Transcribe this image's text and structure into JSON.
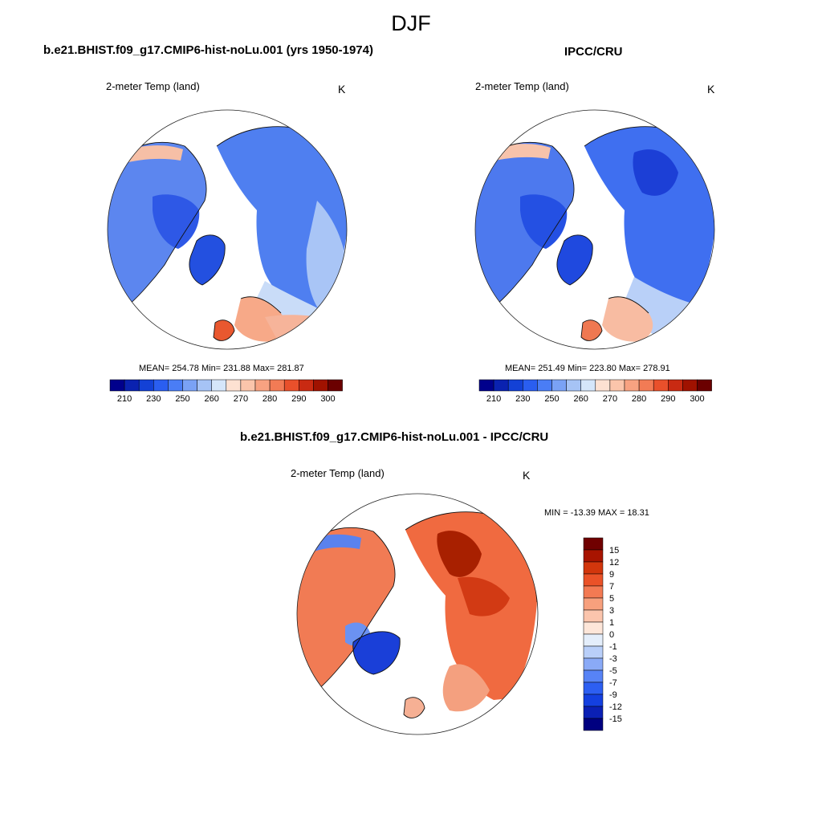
{
  "season": "DJF",
  "colors": {
    "scale_21": [
      "#00008c",
      "#0a22b0",
      "#1341d6",
      "#2a5ef0",
      "#4a7df5",
      "#7aa2f5",
      "#a6c3f5",
      "#d5e6fa",
      "#fde1d2",
      "#fbc5ab",
      "#f8a281",
      "#f27b55",
      "#e9502b",
      "#c92a12",
      "#a01200",
      "#6b0000"
    ],
    "diff": [
      "#000080",
      "#0b20b5",
      "#1440e0",
      "#2d5ff2",
      "#5783f6",
      "#8aaaf7",
      "#b9cff9",
      "#e4eefb",
      "#fde6d9",
      "#fbc5ad",
      "#f7a07d",
      "#f37a53",
      "#ea5228",
      "#d2360c",
      "#a81400",
      "#700000"
    ],
    "land_cold": "#5b86ee",
    "land_warm": "#f39a76"
  },
  "panels": [
    {
      "id": "model",
      "title": "b.e21.BHIST.f09_g17.CMIP6-hist-noLu.001 (yrs 1950-1974)",
      "variable": "2-meter Temp (land)",
      "units": "K",
      "stats": "MEAN= 254.78  Min= 231.88  Max= 281.87",
      "colorbar_labels": [
        "210",
        "230",
        "250",
        "260",
        "270",
        "280",
        "290",
        "300"
      ]
    },
    {
      "id": "obs",
      "title": "IPCC/CRU",
      "variable": "2-meter Temp (land)",
      "units": "K",
      "stats": "MEAN= 251.49  Min= 223.80  Max= 278.91",
      "colorbar_labels": [
        "210",
        "230",
        "250",
        "260",
        "270",
        "280",
        "290",
        "300"
      ]
    },
    {
      "id": "diff",
      "title": "b.e21.BHIST.f09_g17.CMIP6-hist-noLu.001 - IPCC/CRU",
      "variable": "2-meter Temp (land)",
      "units": "K",
      "stats": "MIN = -13.39 MAX =  18.31",
      "colorbar_labels": [
        "15",
        "12",
        "9",
        "7",
        "5",
        "3",
        "1",
        "0",
        "-1",
        "-3",
        "-5",
        "-7",
        "-9",
        "-12",
        "-15"
      ]
    }
  ]
}
